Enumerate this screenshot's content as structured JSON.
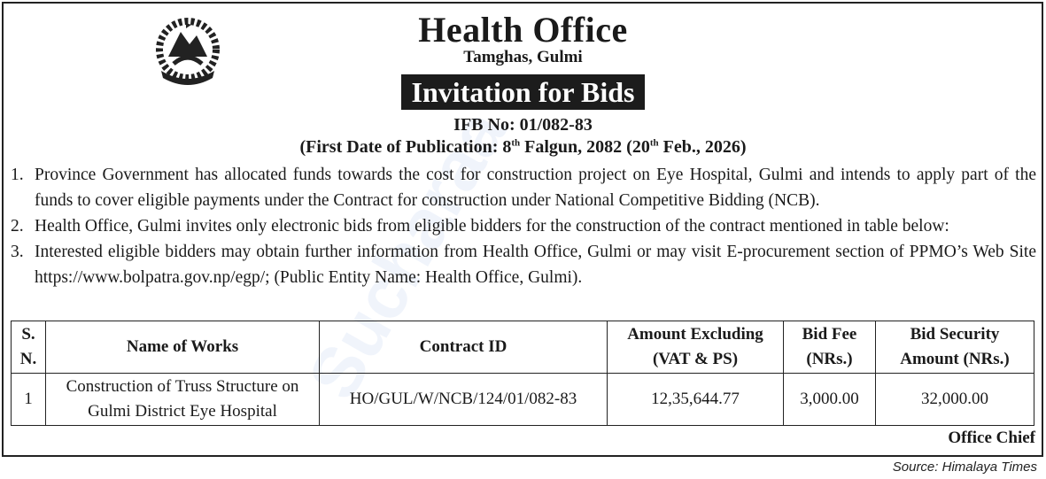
{
  "header": {
    "office": "Health Office",
    "location": "Tamghas, Gulmi",
    "banner": "Invitation for Bids",
    "ifb_no": "IFB No: 01/082-83",
    "pub_prefix": "(First Date of Publication: 8",
    "pub_sup1": "th",
    "pub_mid": " Falgun, 2082 (20",
    "pub_sup2": "th",
    "pub_suffix": " Feb., 2026)"
  },
  "emblem": {
    "icon": "nepal-government-emblem"
  },
  "items": [
    {
      "num": "1.",
      "text": "Province Government has allocated funds towards the cost for construction project on Eye Hospital, Gulmi and intends to apply part of the funds to cover eligible payments under the Contract for construction under National Competitive Bidding (NCB)."
    },
    {
      "num": "2.",
      "text": "Health Office, Gulmi invites only electronic bids from eligible bidders for the construction of the contract mentioned in table below:"
    },
    {
      "num": "3.",
      "text": "Interested eligible bidders may obtain further information from Health Office, Gulmi or may visit E-procurement section of PPMO’s Web Site https://www.bolpatra.gov.np/egp/; (Public Entity Name: Health Office, Gulmi)."
    }
  ],
  "table": {
    "headers": [
      "S. N.",
      "Name of Works",
      "Contract ID",
      "Amount Excluding (VAT & PS)",
      "Bid Fee (NRs.)",
      "Bid Security Amount (NRs.)"
    ],
    "rows": [
      [
        "1",
        "Construction of Truss Structure on Gulmi District Eye Hospital",
        "HO/GUL/W/NCB/124/01/082-83",
        "12,35,644.77",
        "3,000.00",
        "32,000.00"
      ]
    ]
  },
  "signature": "Office Chief",
  "source": "Source: Himalaya Times",
  "watermark": "Sucharaa"
}
